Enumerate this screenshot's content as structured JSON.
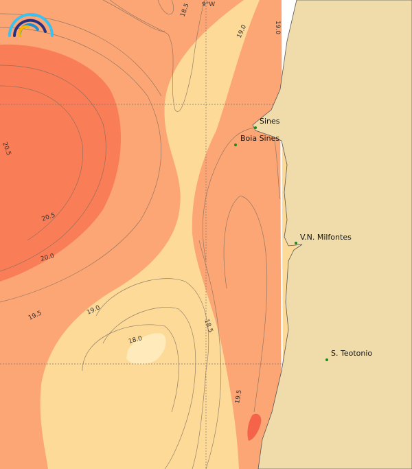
{
  "map": {
    "grid_label": "9°W",
    "colors": {
      "land": "#efdcaa",
      "sea_18_5_19": "#fdda98",
      "sea_below_18": "#feeabb",
      "sea_19_19_5": "#fca676",
      "sea_20_20_5": "#f97e58",
      "sea_max": "#f4634a",
      "no_data": "#ffffff",
      "station_dot": "#1a8a1a"
    },
    "contour_labels": [
      "18.5",
      "19.0",
      "19.0",
      "20.5",
      "20.5",
      "20.0",
      "19.5",
      "19.0",
      "18.0",
      "18.5",
      "19.5"
    ],
    "places": [
      {
        "name": "Sines"
      },
      {
        "name": "Boia Sines"
      },
      {
        "name": "V.N. Milfontes"
      },
      {
        "name": "S. Teotonio"
      }
    ],
    "logo": {
      "icon": "arc-waves-logo"
    }
  }
}
